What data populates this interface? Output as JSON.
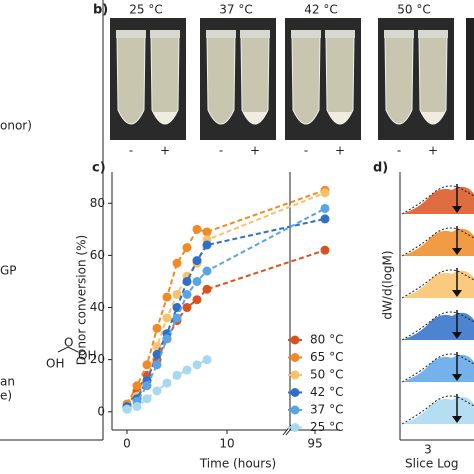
{
  "left_panel": {
    "texts": [
      "onor)",
      "GP",
      "O",
      "OH",
      "OH",
      "an",
      "e)"
    ]
  },
  "panel_b": {
    "label": "b)",
    "temperatures": [
      "25 °C",
      "37 °C",
      "42 °C",
      "50 °C"
    ],
    "signs": [
      "-",
      "+"
    ]
  },
  "chart_data": {
    "type": "scatter",
    "label": "c)",
    "y_label": "Donor conversion (%)",
    "x_label": "Time (hours)",
    "xlim": [
      -1.5,
      97.5
    ],
    "xbreak": [
      16,
      92.5
    ],
    "xticks": [
      0,
      10,
      95
    ],
    "ylim": [
      -7,
      92
    ],
    "yticks": [
      0,
      20,
      40,
      60,
      80
    ],
    "legend": "lower right",
    "series": [
      {
        "name": "80 °C",
        "color": "#d9531e",
        "x": [
          0,
          1,
          2,
          3,
          4,
          5,
          6,
          7,
          8,
          96
        ],
        "values": [
          2,
          8,
          14,
          20,
          28,
          35,
          40,
          43,
          47,
          62
        ]
      },
      {
        "name": "65 °C",
        "color": "#f08a24",
        "x": [
          0,
          1,
          2,
          3,
          4,
          5,
          6,
          7,
          8,
          96
        ],
        "values": [
          3,
          10,
          18,
          32,
          44,
          57,
          63,
          70,
          69,
          85
        ]
      },
      {
        "name": "50 °C",
        "color": "#f8c16a",
        "x": [
          0,
          1,
          2,
          3,
          4,
          5,
          6,
          7,
          8,
          96
        ],
        "values": [
          2,
          6,
          12,
          25,
          36,
          45,
          52,
          57,
          66,
          84
        ]
      },
      {
        "name": "42 °C",
        "color": "#2e6fc9",
        "x": [
          0,
          1,
          2,
          3,
          4,
          5,
          6,
          7,
          8,
          96
        ],
        "values": [
          2,
          5,
          12,
          22,
          30,
          40,
          50,
          58,
          64,
          74
        ]
      },
      {
        "name": "37 °C",
        "color": "#5aa4e6",
        "x": [
          0,
          1,
          2,
          3,
          4,
          5,
          6,
          7,
          8,
          96
        ],
        "values": [
          1,
          4,
          10,
          18,
          28,
          36,
          45,
          50,
          54,
          78
        ]
      },
      {
        "name": "25 °C",
        "color": "#a8d8f0",
        "x": [
          0,
          1,
          2,
          3,
          4,
          5,
          6,
          7,
          8
        ],
        "values": [
          1,
          2,
          5,
          8,
          11,
          14,
          16,
          18,
          20
        ]
      }
    ]
  },
  "panel_d": {
    "label": "d)",
    "y_label": "dW/d(logM)",
    "x_label": "Slice Log",
    "xtick": "3"
  }
}
